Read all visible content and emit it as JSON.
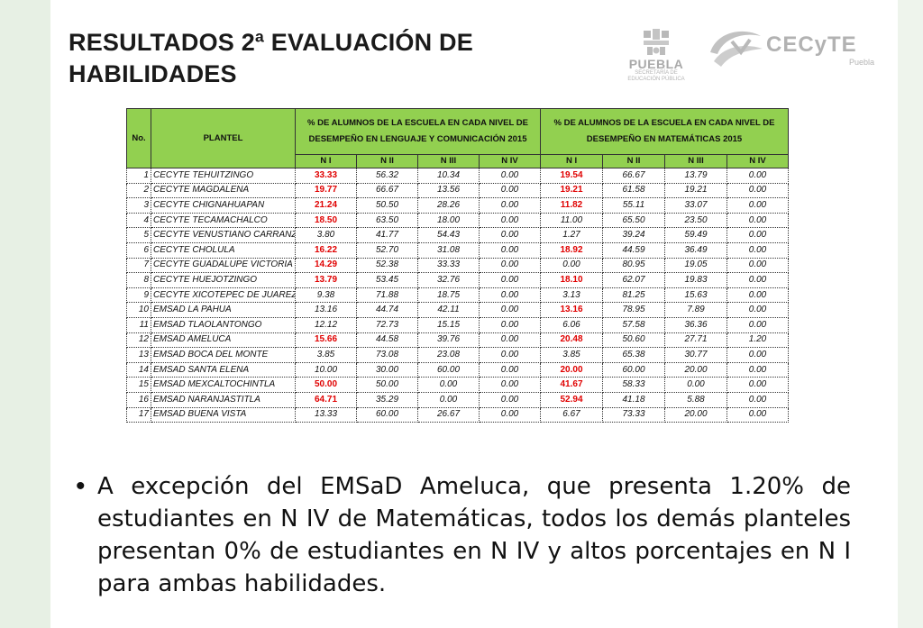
{
  "title": {
    "line1": "RESULTADOS 2ª EVALUACIÓN DE",
    "line2": "HABILIDADES"
  },
  "logos": {
    "puebla": {
      "word": "PUEBLA",
      "sub1": "SECRETARÍA DE",
      "sub2": "EDUCACIÓN PÚBLICA",
      "icon": "puebla-emblem-icon"
    },
    "cecyte": {
      "word": "CECyTE",
      "place": "Puebla",
      "icon": "cecyte-swoosh-icon"
    }
  },
  "table": {
    "col_no": "No.",
    "col_plantel": "PLANTEL",
    "group_lenguaje": "% DE ALUMNOS DE LA ESCUELA EN CADA NIVEL DE DESEMPEÑO EN LENGUAJE Y COMUNICACIÓN 2015",
    "group_matematicas": "% DE ALUMNOS DE LA ESCUELA EN CADA NIVEL DE DESEMPEÑO EN MATEMÁTICAS 2015",
    "levels": [
      "N I",
      "N II",
      "N III",
      "N IV"
    ],
    "header_color": "#92d050",
    "highlight_color": "#e00000",
    "rows": [
      {
        "no": "1",
        "plantel": "CECYTE TEHUITZINGO",
        "len": [
          "33.33",
          "56.32",
          "10.34",
          "0.00"
        ],
        "mat": [
          "19.54",
          "66.67",
          "13.79",
          "0.00"
        ],
        "len_red": true,
        "mat_red": true
      },
      {
        "no": "2",
        "plantel": "CECYTE MAGDALENA",
        "len": [
          "19.77",
          "66.67",
          "13.56",
          "0.00"
        ],
        "mat": [
          "19.21",
          "61.58",
          "19.21",
          "0.00"
        ],
        "len_red": true,
        "mat_red": true
      },
      {
        "no": "3",
        "plantel": "CECYTE CHIGNAHUAPAN",
        "len": [
          "21.24",
          "50.50",
          "28.26",
          "0.00"
        ],
        "mat": [
          "11.82",
          "55.11",
          "33.07",
          "0.00"
        ],
        "len_red": true,
        "mat_red": true
      },
      {
        "no": "4",
        "plantel": "CECYTE TECAMACHALCO",
        "len": [
          "18.50",
          "63.50",
          "18.00",
          "0.00"
        ],
        "mat": [
          "11.00",
          "65.50",
          "23.50",
          "0.00"
        ],
        "len_red": true,
        "mat_red": false
      },
      {
        "no": "5",
        "plantel": "CECYTE VENUSTIANO CARRANZA",
        "len": [
          "3.80",
          "41.77",
          "54.43",
          "0.00"
        ],
        "mat": [
          "1.27",
          "39.24",
          "59.49",
          "0.00"
        ],
        "len_red": false,
        "mat_red": false
      },
      {
        "no": "6",
        "plantel": "CECYTE CHOLULA",
        "len": [
          "16.22",
          "52.70",
          "31.08",
          "0.00"
        ],
        "mat": [
          "18.92",
          "44.59",
          "36.49",
          "0.00"
        ],
        "len_red": true,
        "mat_red": true
      },
      {
        "no": "7",
        "plantel": "CECYTE GUADALUPE VICTORIA",
        "len": [
          "14.29",
          "52.38",
          "33.33",
          "0.00"
        ],
        "mat": [
          "0.00",
          "80.95",
          "19.05",
          "0.00"
        ],
        "len_red": true,
        "mat_red": false
      },
      {
        "no": "8",
        "plantel": "CECYTE HUEJOTZINGO",
        "len": [
          "13.79",
          "53.45",
          "32.76",
          "0.00"
        ],
        "mat": [
          "18.10",
          "62.07",
          "19.83",
          "0.00"
        ],
        "len_red": true,
        "mat_red": true
      },
      {
        "no": "9",
        "plantel": "CECYTE XICOTEPEC DE JUAREZ",
        "len": [
          "9.38",
          "71.88",
          "18.75",
          "0.00"
        ],
        "mat": [
          "3.13",
          "81.25",
          "15.63",
          "0.00"
        ],
        "len_red": false,
        "mat_red": false
      },
      {
        "no": "10",
        "plantel": "EMSAD LA PAHUA",
        "len": [
          "13.16",
          "44.74",
          "42.11",
          "0.00"
        ],
        "mat": [
          "13.16",
          "78.95",
          "7.89",
          "0.00"
        ],
        "len_red": false,
        "mat_red": true
      },
      {
        "no": "11",
        "plantel": "EMSAD TLAOLANTONGO",
        "len": [
          "12.12",
          "72.73",
          "15.15",
          "0.00"
        ],
        "mat": [
          "6.06",
          "57.58",
          "36.36",
          "0.00"
        ],
        "len_red": false,
        "mat_red": false
      },
      {
        "no": "12",
        "plantel": "EMSAD AMELUCA",
        "len": [
          "15.66",
          "44.58",
          "39.76",
          "0.00"
        ],
        "mat": [
          "20.48",
          "50.60",
          "27.71",
          "1.20"
        ],
        "len_red": true,
        "mat_red": true
      },
      {
        "no": "13",
        "plantel": "EMSAD BOCA DEL MONTE",
        "len": [
          "3.85",
          "73.08",
          "23.08",
          "0.00"
        ],
        "mat": [
          "3.85",
          "65.38",
          "30.77",
          "0.00"
        ],
        "len_red": false,
        "mat_red": false
      },
      {
        "no": "14",
        "plantel": "EMSAD SANTA ELENA",
        "len": [
          "10.00",
          "30.00",
          "60.00",
          "0.00"
        ],
        "mat": [
          "20.00",
          "60.00",
          "20.00",
          "0.00"
        ],
        "len_red": false,
        "mat_red": true
      },
      {
        "no": "15",
        "plantel": "EMSAD MEXCALTOCHINTLA",
        "len": [
          "50.00",
          "50.00",
          "0.00",
          "0.00"
        ],
        "mat": [
          "41.67",
          "58.33",
          "0.00",
          "0.00"
        ],
        "len_red": true,
        "mat_red": true
      },
      {
        "no": "16",
        "plantel": "EMSAD NARANJASTITLA",
        "len": [
          "64.71",
          "35.29",
          "0.00",
          "0.00"
        ],
        "mat": [
          "52.94",
          "41.18",
          "5.88",
          "0.00"
        ],
        "len_red": true,
        "mat_red": true
      },
      {
        "no": "17",
        "plantel": "EMSAD BUENA VISTA",
        "len": [
          "13.33",
          "60.00",
          "26.67",
          "0.00"
        ],
        "mat": [
          "6.67",
          "73.33",
          "20.00",
          "0.00"
        ],
        "len_red": false,
        "mat_red": false
      }
    ]
  },
  "bullet": {
    "symbol": "•",
    "text": "A excepción del EMSaD Ameluca, que presenta 1.20% de estudiantes en N IV de Matemáticas, todos los demás planteles presentan 0% de estudiantes en N IV y altos porcentajes en N I para ambas habilidades."
  }
}
